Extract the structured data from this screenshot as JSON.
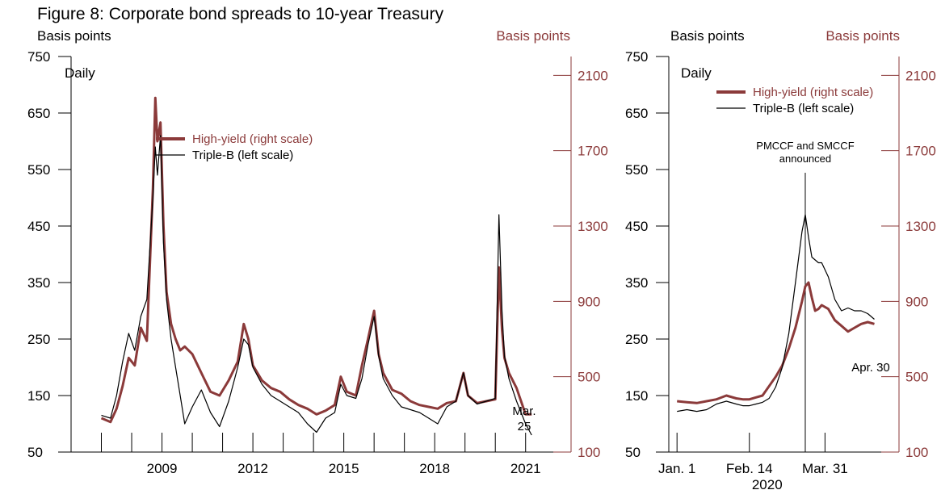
{
  "figure_title": "Figure 8: Corporate bond spreads to 10-year Treasury",
  "colors": {
    "high_yield": "#8b3a3a",
    "triple_b": "#000000",
    "right_axis": "#8b3a3a"
  },
  "chart_data": [
    {
      "type": "line",
      "frequency_label": "Daily",
      "left_axis_unit": "Basis points",
      "right_axis_unit": "Basis points",
      "ylim_left": [
        50,
        750
      ],
      "ylim_right": [
        100,
        2200
      ],
      "left_ticks": [
        50,
        150,
        250,
        350,
        450,
        550,
        650,
        750
      ],
      "right_ticks": [
        100,
        500,
        900,
        1300,
        1700,
        2100
      ],
      "xlim": [
        2006.0,
        2022.5
      ],
      "x_tick_labels": [
        "2009",
        "2012",
        "2015",
        "2018",
        "2021"
      ],
      "x_tick_positions": [
        2009,
        2012,
        2015,
        2018,
        2021
      ],
      "x_minor_ticks": [
        2007,
        2008,
        2009,
        2010,
        2011,
        2012,
        2013,
        2014,
        2015,
        2016,
        2017,
        2018,
        2019,
        2020,
        2021
      ],
      "legend_position": "top-center",
      "annotation": "Mar. 25",
      "series": [
        {
          "name": "High-yield (right scale)",
          "axis": "right",
          "x": [
            2007.0,
            2007.3,
            2007.5,
            2007.7,
            2007.9,
            2008.1,
            2008.3,
            2008.5,
            2008.7,
            2008.78,
            2008.85,
            2008.95,
            2009.05,
            2009.15,
            2009.3,
            2009.45,
            2009.6,
            2009.75,
            2010.0,
            2010.3,
            2010.6,
            2010.9,
            2011.2,
            2011.5,
            2011.7,
            2011.85,
            2012.0,
            2012.3,
            2012.6,
            2012.9,
            2013.2,
            2013.5,
            2013.8,
            2014.1,
            2014.4,
            2014.7,
            2014.9,
            2015.1,
            2015.4,
            2015.6,
            2015.8,
            2016.0,
            2016.15,
            2016.3,
            2016.6,
            2016.9,
            2017.2,
            2017.5,
            2017.8,
            2018.1,
            2018.4,
            2018.7,
            2018.95,
            2019.1,
            2019.4,
            2019.7,
            2020.0,
            2020.12,
            2020.22,
            2020.3,
            2020.45,
            2020.7,
            2021.0,
            2021.2
          ],
          "values": [
            280,
            260,
            330,
            450,
            600,
            560,
            760,
            690,
            1500,
            1980,
            1750,
            1850,
            1300,
            950,
            780,
            700,
            640,
            660,
            620,
            520,
            420,
            400,
            480,
            580,
            780,
            700,
            560,
            480,
            440,
            420,
            380,
            350,
            330,
            300,
            320,
            350,
            500,
            420,
            400,
            560,
            700,
            850,
            620,
            520,
            430,
            410,
            370,
            350,
            340,
            330,
            360,
            370,
            520,
            400,
            360,
            370,
            380,
            1080,
            750,
            600,
            520,
            440,
            300,
            300
          ]
        },
        {
          "name": "Triple-B (left scale)",
          "axis": "left",
          "x": [
            2007.0,
            2007.3,
            2007.5,
            2007.7,
            2007.9,
            2008.1,
            2008.3,
            2008.5,
            2008.7,
            2008.78,
            2008.85,
            2008.95,
            2009.05,
            2009.15,
            2009.3,
            2009.45,
            2009.6,
            2009.75,
            2010.0,
            2010.3,
            2010.6,
            2010.9,
            2011.2,
            2011.5,
            2011.7,
            2011.85,
            2012.0,
            2012.3,
            2012.6,
            2012.9,
            2013.2,
            2013.5,
            2013.8,
            2014.1,
            2014.4,
            2014.7,
            2014.9,
            2015.1,
            2015.4,
            2015.6,
            2015.8,
            2016.0,
            2016.15,
            2016.3,
            2016.6,
            2016.9,
            2017.2,
            2017.5,
            2017.8,
            2018.1,
            2018.4,
            2018.7,
            2018.95,
            2019.1,
            2019.4,
            2019.7,
            2020.0,
            2020.12,
            2020.22,
            2020.3,
            2020.45,
            2020.7,
            2021.0,
            2021.2
          ],
          "values": [
            115,
            110,
            150,
            210,
            260,
            230,
            290,
            320,
            500,
            590,
            540,
            610,
            420,
            320,
            250,
            200,
            150,
            100,
            130,
            160,
            120,
            95,
            140,
            200,
            250,
            240,
            200,
            170,
            150,
            140,
            130,
            120,
            100,
            85,
            110,
            120,
            170,
            150,
            145,
            180,
            240,
            290,
            220,
            180,
            150,
            130,
            125,
            120,
            110,
            100,
            130,
            140,
            190,
            150,
            135,
            140,
            145,
            470,
            300,
            220,
            180,
            140,
            100,
            80
          ]
        }
      ]
    },
    {
      "type": "line",
      "frequency_label": "Daily",
      "left_axis_unit": "Basis points",
      "right_axis_unit": "Basis points",
      "ylim_left": [
        50,
        750
      ],
      "ylim_right": [
        100,
        2200
      ],
      "left_ticks": [
        50,
        150,
        250,
        350,
        450,
        550,
        650,
        750
      ],
      "right_ticks": [
        100,
        500,
        900,
        1300,
        1700,
        2100
      ],
      "xlim": [
        -5,
        135
      ],
      "x_tick_labels": [
        "Jan. 1",
        "Feb. 14",
        "Mar. 31"
      ],
      "x_tick_positions": [
        0,
        44,
        90
      ],
      "x_label": "2020",
      "legend_position": "top-center",
      "vertical_line_x": 78,
      "vertical_line_label": "PMCCF and SMCCF announced",
      "annotation": "Apr. 30",
      "series": [
        {
          "name": "High-yield (right scale)",
          "axis": "right",
          "x": [
            0,
            6,
            12,
            18,
            24,
            30,
            36,
            40,
            44,
            48,
            52,
            56,
            60,
            64,
            68,
            72,
            76,
            78,
            80,
            82,
            84,
            86,
            88,
            92,
            96,
            100,
            104,
            108,
            112,
            116,
            120
          ],
          "values": [
            370,
            365,
            360,
            370,
            380,
            400,
            385,
            380,
            380,
            390,
            400,
            450,
            500,
            560,
            650,
            760,
            900,
            980,
            1000,
            920,
            850,
            860,
            880,
            860,
            800,
            770,
            740,
            760,
            780,
            790,
            780
          ]
        },
        {
          "name": "Triple-B (left scale)",
          "axis": "left",
          "x": [
            0,
            6,
            12,
            18,
            24,
            30,
            36,
            40,
            44,
            48,
            52,
            56,
            60,
            64,
            68,
            72,
            76,
            78,
            80,
            82,
            84,
            86,
            88,
            92,
            96,
            100,
            104,
            108,
            112,
            116,
            120
          ],
          "values": [
            122,
            125,
            122,
            125,
            135,
            140,
            135,
            132,
            132,
            135,
            138,
            145,
            165,
            200,
            260,
            350,
            440,
            470,
            430,
            395,
            390,
            385,
            385,
            360,
            320,
            300,
            305,
            300,
            300,
            295,
            285
          ]
        }
      ]
    }
  ]
}
